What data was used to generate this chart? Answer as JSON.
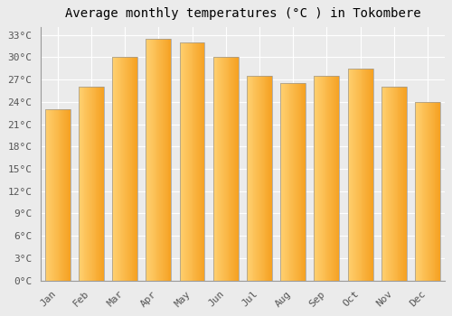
{
  "title": "Average monthly temperatures (°C ) in Tokombere",
  "months": [
    "Jan",
    "Feb",
    "Mar",
    "Apr",
    "May",
    "Jun",
    "Jul",
    "Aug",
    "Sep",
    "Oct",
    "Nov",
    "Dec"
  ],
  "temperatures": [
    23.0,
    26.0,
    30.0,
    32.5,
    32.0,
    30.0,
    27.5,
    26.5,
    27.5,
    28.5,
    26.0,
    24.0
  ],
  "bar_color_left": "#FFD070",
  "bar_color_right": "#F5A020",
  "bar_edge_color": "#999999",
  "background_color": "#EBEBEB",
  "plot_bg_color": "#EBEBEB",
  "grid_color": "#ffffff",
  "ylim": [
    0,
    34
  ],
  "yticks": [
    0,
    3,
    6,
    9,
    12,
    15,
    18,
    21,
    24,
    27,
    30,
    33
  ],
  "title_fontsize": 10,
  "tick_fontsize": 8,
  "font_family": "monospace"
}
